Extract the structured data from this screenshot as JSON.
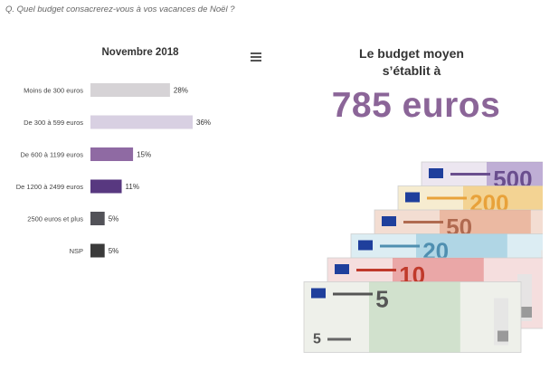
{
  "question": "Q. Quel budget consacrerez-vous à vos vacances de Noël ?",
  "headline": {
    "line1": "Le budget moyen",
    "line2": "s’établit à",
    "amount": "785 euros"
  },
  "colors": {
    "accent": "#8b6598",
    "bar_light": "#d6d3d6",
    "bar_lavender": "#d8d0e2",
    "bar_purple": "#8f6aa3",
    "bar_deep": "#583880",
    "bar_gray": "#525258",
    "bar_dark": "#3a3a3a"
  },
  "banknotes": [
    "500",
    "200",
    "50",
    "20",
    "10",
    "5"
  ],
  "chart_data": {
    "type": "bar",
    "orientation": "horizontal",
    "title": "Novembre 2018",
    "categories": [
      "Moins de 300 euros",
      "De 300 à 599 euros",
      "De 600 à 1199 euros",
      "De 1200 à 2499 euros",
      "2500 euros et plus",
      "NSP"
    ],
    "values": [
      28,
      36,
      15,
      11,
      5,
      5
    ],
    "labels": [
      "28%",
      "36%",
      "15%",
      "11%",
      "5%",
      "5%"
    ],
    "unit": "%",
    "xlim": [
      0,
      36
    ],
    "grid": false,
    "legend": "none"
  }
}
